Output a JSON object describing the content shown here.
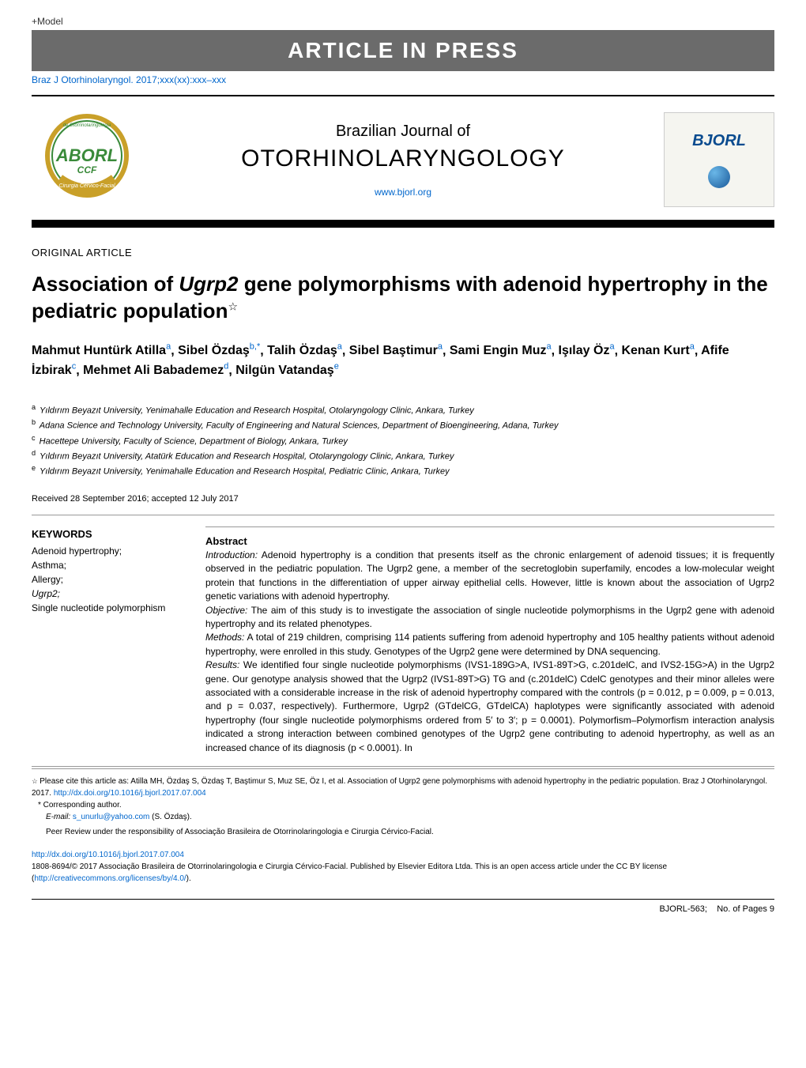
{
  "top": {
    "model_label": "+Model",
    "banner": "ARTICLE IN PRESS",
    "citation": "Braz J Otorhinolaryngol. 2017;xxx(xx):xxx–xxx"
  },
  "journal": {
    "top_line": "Brazilian Journal of",
    "main_line": "OTORHINOLARYNGOLOGY",
    "url": "www.bjorl.org",
    "cover_logo_text": "BJORL"
  },
  "article": {
    "section_label": "ORIGINAL ARTICLE",
    "title_part1": "Association of ",
    "title_gene": "Ugrp2",
    "title_part2": " gene polymorphisms with adenoid hypertrophy in the pediatric population",
    "star": "☆"
  },
  "authors": [
    {
      "name": "Mahmut Huntürk Atilla",
      "aff": "a"
    },
    {
      "name": "Sibel Özdaş",
      "aff": "b,*"
    },
    {
      "name": "Talih Özdaş",
      "aff": "a"
    },
    {
      "name": "Sibel Baştimur",
      "aff": "a"
    },
    {
      "name": "Sami Engin Muz",
      "aff": "a"
    },
    {
      "name": "Işılay Öz",
      "aff": "a"
    },
    {
      "name": "Kenan Kurt",
      "aff": "a"
    },
    {
      "name": "Afife İzbirak",
      "aff": "c"
    },
    {
      "name": "Mehmet Ali Babademez",
      "aff": "d"
    },
    {
      "name": "Nilgün Vatandaş",
      "aff": "e"
    }
  ],
  "affiliations": [
    {
      "key": "a",
      "text": "Yıldırım Beyazıt University, Yenimahalle Education and Research Hospital, Otolaryngology Clinic, Ankara, Turkey"
    },
    {
      "key": "b",
      "text": "Adana Science and Technology University, Faculty of Engineering and Natural Sciences, Department of Bioengineering, Adana, Turkey"
    },
    {
      "key": "c",
      "text": "Hacettepe University, Faculty of Science, Department of Biology, Ankara, Turkey"
    },
    {
      "key": "d",
      "text": "Yıldırım Beyazıt University, Atatürk Education and Research Hospital, Otolaryngology Clinic, Ankara, Turkey"
    },
    {
      "key": "e",
      "text": "Yıldırım Beyazıt University, Yenimahalle Education and Research Hospital, Pediatric Clinic, Ankara, Turkey"
    }
  ],
  "received": "Received 28 September 2016; accepted 12 July 2017",
  "keywords": {
    "header": "KEYWORDS",
    "items": [
      "Adenoid hypertrophy;",
      "Asthma;",
      "Allergy;",
      "Ugrp2;",
      "Single nucleotide polymorphism"
    ]
  },
  "abstract": {
    "header": "Abstract",
    "intro_label": "Introduction:",
    "intro": " Adenoid hypertrophy is a condition that presents itself as the chronic enlargement of adenoid tissues; it is frequently observed in the pediatric population. The Ugrp2 gene, a member of the secretoglobin superfamily, encodes a low-molecular weight protein that functions in the differentiation of upper airway epithelial cells. However, little is known about the association of Ugrp2 genetic variations with adenoid hypertrophy.",
    "objective_label": "Objective:",
    "objective": " The aim of this study is to investigate the association of single nucleotide polymorphisms in the Ugrp2 gene with adenoid hypertrophy and its related phenotypes.",
    "methods_label": "Methods:",
    "methods": " A total of 219 children, comprising 114 patients suffering from adenoid hypertrophy and 105 healthy patients without adenoid hypertrophy, were enrolled in this study. Genotypes of the Ugrp2 gene were determined by DNA sequencing.",
    "results_label": "Results:",
    "results": " We identified four single nucleotide polymorphisms (IVS1-189G>A, IVS1-89T>G, c.201delC, and IVS2-15G>A) in the Ugrp2 gene. Our genotype analysis showed that the Ugrp2 (IVS1-89T>G) TG and (c.201delC) CdelC genotypes and their minor alleles were associated with a considerable increase in the risk of adenoid hypertrophy compared with the controls (p = 0.012, p = 0.009, p = 0.013, and p = 0.037, respectively). Furthermore, Ugrp2 (GTdelCG, GTdelCA) haplotypes were significantly associated with adenoid hypertrophy (four single nucleotide polymorphisms ordered from 5′ to 3′; p = 0.0001). Polymorfism–Polymorfism interaction analysis indicated a strong interaction between combined genotypes of the Ugrp2 gene contributing to adenoid hypertrophy, as well as an increased chance of its diagnosis (p < 0.0001). In"
  },
  "footer": {
    "cite_note": "Please cite this article as: Atilla MH, Özdaş S, Özdaş T, Baştimur S, Muz SE, Öz I, et al. Association of Ugrp2 gene polymorphisms with adenoid hypertrophy in the pediatric population. Braz J Otorhinolaryngol. 2017. ",
    "cite_doi": "http://dx.doi.org/10.1016/j.bjorl.2017.07.004",
    "corresponding_label": "* Corresponding author.",
    "email_label": "E-mail: ",
    "email": "s_unurlu@yahoo.com",
    "email_name": " (S. Özdaş).",
    "peer_review": "Peer Review under the responsibility of Associação Brasileira de Otorrinolaringologia e Cirurgia Cérvico-Facial.",
    "doi_url": "http://dx.doi.org/10.1016/j.bjorl.2017.07.004",
    "license1": "1808-8694/© 2017 Associação Brasileira de Otorrinolaringologia e Cirurgia Cérvico-Facial. Published by Elsevier Editora Ltda. This is an open access article under the CC BY license (",
    "license_url": "http://creativecommons.org/licenses/by/4.0/",
    "license2": ")."
  },
  "bottom": {
    "ref": "BJORL-563;",
    "pages": "No. of Pages 9"
  },
  "colors": {
    "banner_bg": "#6b6b6b",
    "link": "#0066cc",
    "logo_green": "#3a8a3a",
    "logo_gold": "#c9a029",
    "logo_navy": "#0a4b8f"
  }
}
